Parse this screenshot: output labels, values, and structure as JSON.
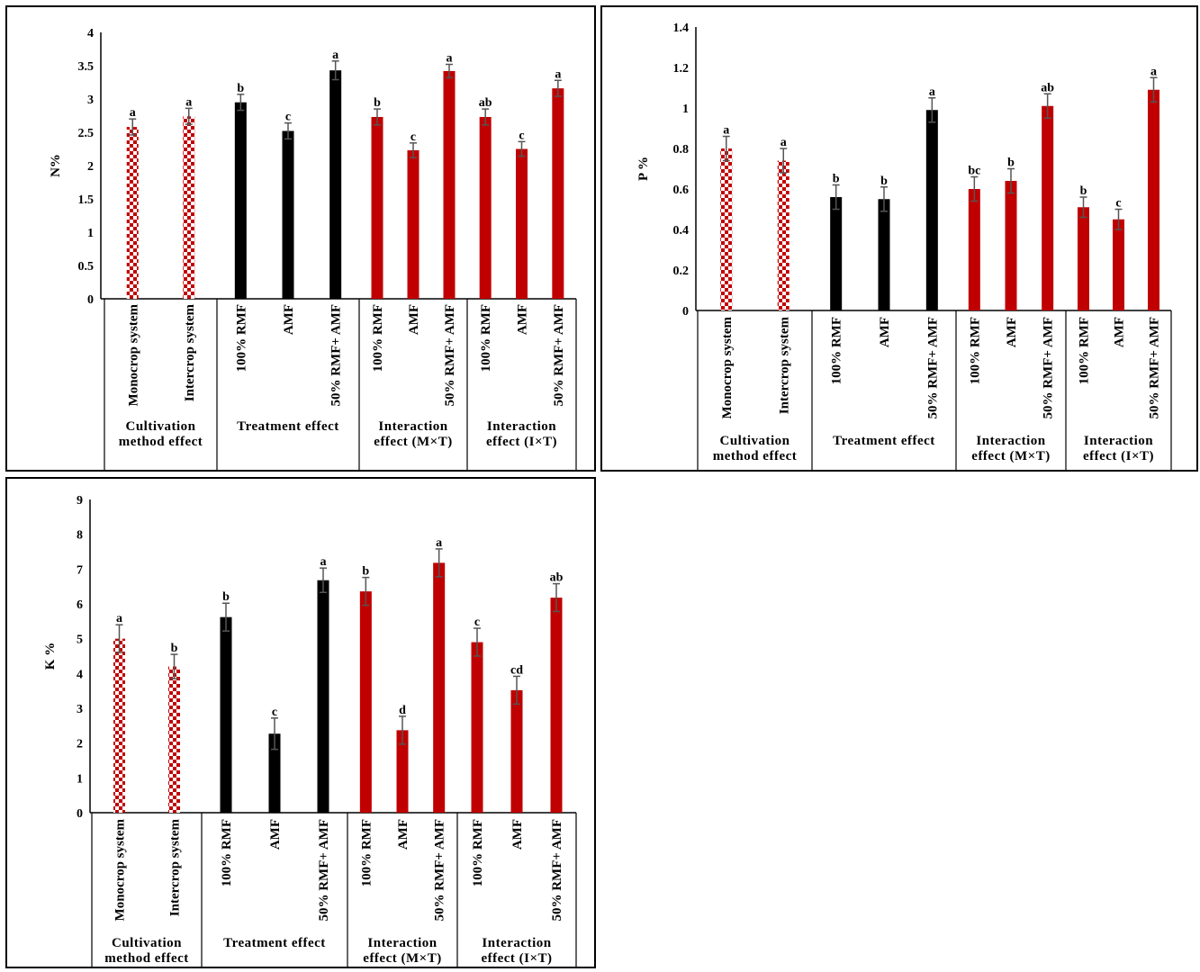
{
  "chart_data": [
    {
      "type": "bar",
      "ylabel": "N%",
      "ylim": [
        0,
        4
      ],
      "yticks": [
        "0",
        "0.5",
        "1",
        "1.5",
        "2",
        "2.5",
        "3",
        "3.5",
        "4"
      ],
      "groups": [
        {
          "label": "Cultivation method effect",
          "bars": [
            {
              "label": "Monocrop system",
              "value": 2.58,
              "err": 0.12,
              "sig": "a",
              "style": "checker"
            },
            {
              "label": "Intercrop system",
              "value": 2.74,
              "err": 0.12,
              "sig": "a",
              "style": "checker"
            }
          ]
        },
        {
          "label": "Treatment effect",
          "bars": [
            {
              "label": "100% RMF",
              "value": 2.95,
              "err": 0.12,
              "sig": "b",
              "style": "black"
            },
            {
              "label": "AMF",
              "value": 2.52,
              "err": 0.12,
              "sig": "c",
              "style": "black"
            },
            {
              "label": "50% RMF+ AMF",
              "value": 3.43,
              "err": 0.14,
              "sig": "a",
              "style": "black"
            }
          ]
        },
        {
          "label": "Interaction effect (M×T)",
          "bars": [
            {
              "label": "100% RMF",
              "value": 2.73,
              "err": 0.12,
              "sig": "b",
              "style": "red"
            },
            {
              "label": "AMF",
              "value": 2.23,
              "err": 0.11,
              "sig": "c",
              "style": "red"
            },
            {
              "label": "50% RMF+ AMF",
              "value": 3.42,
              "err": 0.1,
              "sig": "a",
              "style": "red"
            }
          ]
        },
        {
          "label": "Interaction effect (I×T)",
          "bars": [
            {
              "label": "100% RMF",
              "value": 2.73,
              "err": 0.12,
              "sig": "ab",
              "style": "red"
            },
            {
              "label": "AMF",
              "value": 2.25,
              "err": 0.11,
              "sig": "c",
              "style": "red"
            },
            {
              "label": "50% RMF+ AMF",
              "value": 3.16,
              "err": 0.12,
              "sig": "a",
              "style": "red"
            }
          ]
        }
      ]
    },
    {
      "type": "bar",
      "ylabel": "P %",
      "ylim": [
        0,
        1.4
      ],
      "yticks": [
        "0",
        "0.2",
        "0.4",
        "0.6",
        "0.8",
        "1",
        "1.2",
        "1.4"
      ],
      "groups": [
        {
          "label": "Cultivation method effect",
          "bars": [
            {
              "label": "Monocrop system",
              "value": 0.8,
              "err": 0.06,
              "sig": "a",
              "style": "checker"
            },
            {
              "label": "Intercrop system",
              "value": 0.74,
              "err": 0.06,
              "sig": "a",
              "style": "checker"
            }
          ]
        },
        {
          "label": "Treatment effect",
          "bars": [
            {
              "label": "100% RMF",
              "value": 0.56,
              "err": 0.06,
              "sig": "b",
              "style": "black"
            },
            {
              "label": "AMF",
              "value": 0.55,
              "err": 0.06,
              "sig": "b",
              "style": "black"
            },
            {
              "label": "50% RMF+ AMF",
              "value": 0.99,
              "err": 0.06,
              "sig": "a",
              "style": "black"
            }
          ]
        },
        {
          "label": "Interaction effect (M×T)",
          "bars": [
            {
              "label": "100% RMF",
              "value": 0.6,
              "err": 0.06,
              "sig": "bc",
              "style": "red"
            },
            {
              "label": "AMF",
              "value": 0.64,
              "err": 0.06,
              "sig": "b",
              "style": "red"
            },
            {
              "label": "50% RMF+ AMF",
              "value": 1.01,
              "err": 0.06,
              "sig": "ab",
              "style": "red"
            }
          ]
        },
        {
          "label": "Interaction effect (I×T)",
          "bars": [
            {
              "label": "100% RMF",
              "value": 0.51,
              "err": 0.05,
              "sig": "b",
              "style": "red"
            },
            {
              "label": "AMF",
              "value": 0.45,
              "err": 0.05,
              "sig": "c",
              "style": "red"
            },
            {
              "label": "50% RMF+ AMF",
              "value": 1.09,
              "err": 0.06,
              "sig": "a",
              "style": "red"
            }
          ]
        }
      ]
    },
    {
      "type": "bar",
      "ylabel": "K %",
      "ylim": [
        0,
        9
      ],
      "yticks": [
        "0",
        "1",
        "2",
        "3",
        "4",
        "5",
        "6",
        "7",
        "8",
        "9"
      ],
      "groups": [
        {
          "label": "Cultivation method effect",
          "bars": [
            {
              "label": "Monocrop system",
              "value": 5.0,
              "err": 0.4,
              "sig": "a",
              "style": "checker"
            },
            {
              "label": "Intercrop system",
              "value": 4.2,
              "err": 0.35,
              "sig": "b",
              "style": "checker"
            }
          ]
        },
        {
          "label": "Treatment effect",
          "bars": [
            {
              "label": "100% RMF",
              "value": 5.62,
              "err": 0.4,
              "sig": "b",
              "style": "black"
            },
            {
              "label": "AMF",
              "value": 2.27,
              "err": 0.45,
              "sig": "c",
              "style": "black"
            },
            {
              "label": "50% RMF+ AMF",
              "value": 6.68,
              "err": 0.35,
              "sig": "a",
              "style": "black"
            }
          ]
        },
        {
          "label": "Interaction effect (M×T)",
          "bars": [
            {
              "label": "100% RMF",
              "value": 6.36,
              "err": 0.4,
              "sig": "b",
              "style": "red"
            },
            {
              "label": "AMF",
              "value": 2.37,
              "err": 0.4,
              "sig": "d",
              "style": "red"
            },
            {
              "label": "50% RMF+ AMF",
              "value": 7.18,
              "err": 0.4,
              "sig": "a",
              "style": "red"
            }
          ]
        },
        {
          "label": "Interaction effect (I×T)",
          "bars": [
            {
              "label": "100% RMF",
              "value": 4.9,
              "err": 0.4,
              "sig": "c",
              "style": "red"
            },
            {
              "label": "AMF",
              "value": 3.52,
              "err": 0.4,
              "sig": "cd",
              "style": "red"
            },
            {
              "label": "50% RMF+ AMF",
              "value": 6.18,
              "err": 0.4,
              "sig": "ab",
              "style": "red"
            }
          ]
        }
      ]
    }
  ],
  "colors": {
    "red": "#c00000",
    "black": "#000000",
    "checker_a": "#c00000",
    "checker_b": "#ffffff",
    "error": "#555555"
  }
}
